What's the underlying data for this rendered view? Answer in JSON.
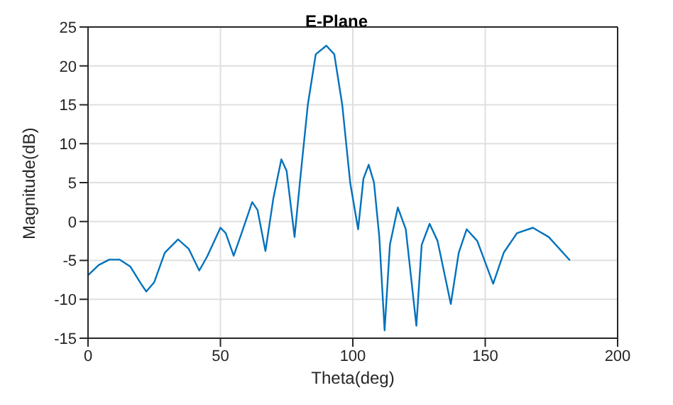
{
  "chart_data": {
    "type": "line",
    "title": "E-Plane",
    "xlabel": "Theta(deg)",
    "ylabel": "Magnitude(dB)",
    "x": [
      0,
      4,
      8,
      12,
      16,
      20,
      22,
      25,
      29,
      34,
      38,
      42,
      45,
      50,
      52,
      55,
      58,
      62,
      64,
      67,
      70,
      73,
      75,
      78,
      80,
      83,
      86,
      90,
      93,
      96,
      99,
      102,
      104,
      106,
      108,
      110,
      112,
      114,
      117,
      120,
      124,
      126,
      129,
      132,
      137,
      140,
      143,
      147,
      153,
      157,
      162,
      168,
      174,
      182
    ],
    "series": [
      {
        "color": "#0072bd",
        "values": [
          -6.9,
          -5.6,
          -4.9,
          -4.9,
          -5.8,
          -8,
          -9,
          -7.8,
          -4,
          -2.3,
          -3.5,
          -6.3,
          -4.5,
          -0.8,
          -1.5,
          -4.4,
          -1.5,
          2.5,
          1.5,
          -3.8,
          3,
          8,
          6.5,
          -2,
          5,
          15,
          21.5,
          22.6,
          21.5,
          15,
          5,
          -1,
          5.5,
          7.3,
          5,
          -2,
          -14,
          -3,
          1.8,
          -1,
          -13.4,
          -3,
          -0.3,
          -2.5,
          -10.6,
          -4,
          -1,
          -2.5,
          -8,
          -4,
          -1.5,
          -0.8,
          -2,
          -5
        ]
      }
    ],
    "xlim": [
      0,
      200
    ],
    "xticks": [
      0,
      50,
      100,
      150,
      200
    ],
    "ylim": [
      -15,
      25
    ],
    "yticks": [
      -15,
      -10,
      -5,
      0,
      5,
      10,
      15,
      20,
      25
    ],
    "grid": true,
    "legend": false,
    "marker": "none",
    "line_style": "solid"
  }
}
